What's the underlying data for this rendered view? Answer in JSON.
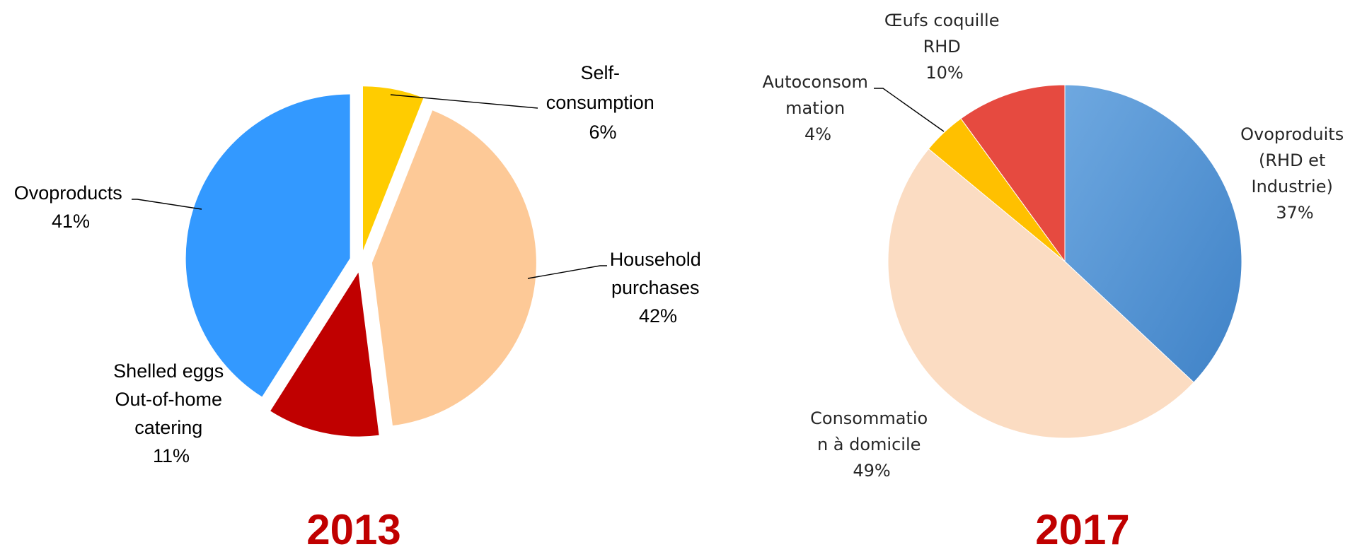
{
  "chart_data": [
    {
      "type": "pie",
      "title": "2013",
      "exploded": true,
      "start": "12 o'clock, clockwise",
      "slices": [
        {
          "label_lines": [
            "Self-",
            "consumption"
          ],
          "pct_label": "6%",
          "value": 6,
          "color": "#ffcc00"
        },
        {
          "label_lines": [
            "Household",
            "purchases"
          ],
          "pct_label": "42%",
          "value": 42,
          "color": "#fdc997"
        },
        {
          "label_lines": [
            "Shelled eggs",
            "Out-of-home",
            "catering"
          ],
          "pct_label": "11%",
          "value": 11,
          "color": "#c00000"
        },
        {
          "label_lines": [
            "Ovoproducts"
          ],
          "pct_label": "41%",
          "value": 41,
          "color": "#3399ff"
        }
      ]
    },
    {
      "type": "pie",
      "title": "2017",
      "exploded": false,
      "start": "12 o'clock, clockwise",
      "slices": [
        {
          "label_lines": [
            "Ovoproduits",
            "(RHD et",
            "Industrie)"
          ],
          "pct_label": "37%",
          "value": 37,
          "color": "#4f8fd0"
        },
        {
          "label_lines": [
            "Consommatio",
            "n à domicile"
          ],
          "pct_label": "49%",
          "value": 49,
          "color": "#fbdcc2"
        },
        {
          "label_lines": [
            "Autoconsom",
            "mation"
          ],
          "pct_label": "4%",
          "value": 4,
          "color": "#ffc000"
        },
        {
          "label_lines": [
            "Œufs coquille",
            "RHD"
          ],
          "pct_label": "10%",
          "value": 10,
          "color": "#e64a40"
        }
      ]
    }
  ]
}
